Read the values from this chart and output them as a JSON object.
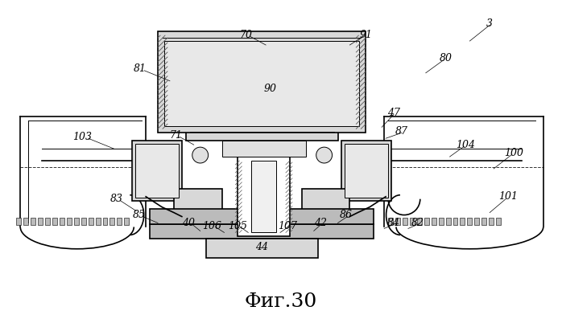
{
  "title": "Фиг.30",
  "title_fontsize": 18,
  "background_color": "#ffffff",
  "line_color": "#000000",
  "gray_light": "#cccccc",
  "gray_mid": "#aaaaaa",
  "gray_dark": "#888888",
  "hatch_gray": "#666666"
}
